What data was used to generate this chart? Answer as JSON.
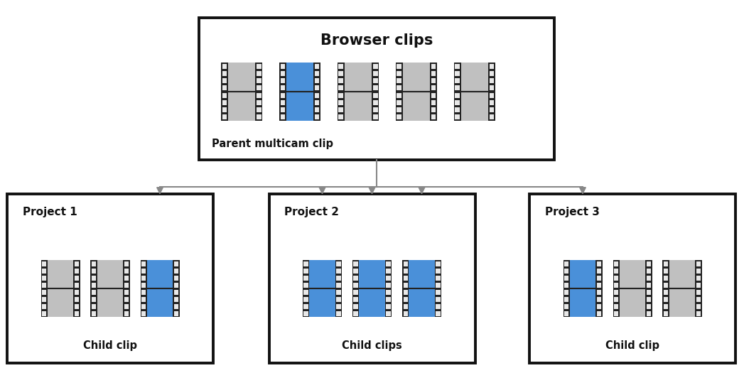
{
  "bg_color": "#ffffff",
  "clip_gray": "#c0c0c0",
  "clip_blue": "#4a90d9",
  "clip_border": "#555555",
  "clip_dark_border": "#222222",
  "box_border": "#111111",
  "arrow_color": "#888888",
  "notch_fill": "#e8e8e8",
  "notch_border": "#555555",
  "title": "Browser clips",
  "parent_label": "Parent multicam clip",
  "projects": [
    "Project 1",
    "Project 2",
    "Project 3"
  ],
  "child_labels": [
    "Child clip",
    "Child clips",
    "Child clip"
  ],
  "parent_blue_idx": [
    1
  ],
  "project1_blue_idx": [
    2
  ],
  "project2_blue_idx": [
    0,
    1,
    2
  ],
  "project3_blue_idx": [
    0
  ]
}
